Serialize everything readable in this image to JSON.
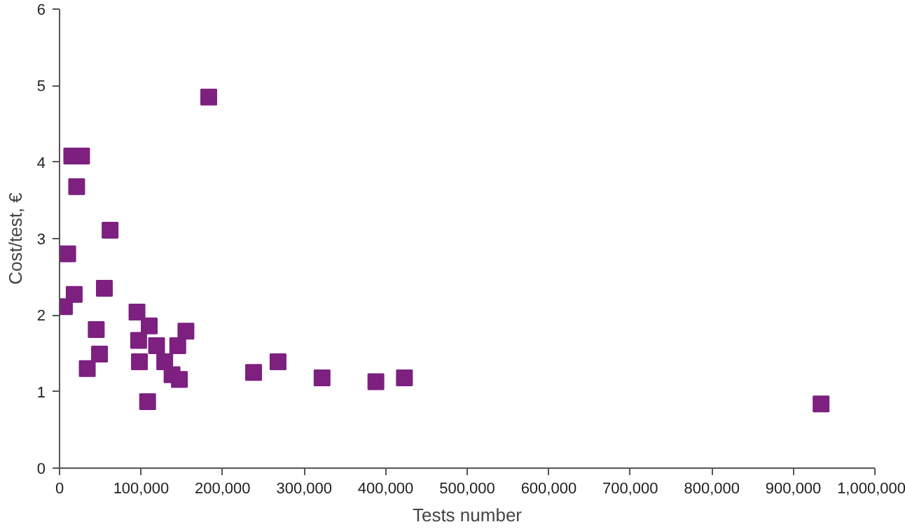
{
  "chart_data": {
    "type": "scatter",
    "xlabel": "Tests number",
    "ylabel": "Cost/test, €",
    "marker": "square",
    "grid": false,
    "xlim": [
      0,
      1000000
    ],
    "ylim": [
      0,
      6
    ],
    "xticks": [
      0,
      {
        "value": 100000,
        "label": "100,000"
      },
      {
        "value": 200000,
        "label": "200,000"
      },
      {
        "value": 300000,
        "label": "300,000"
      },
      {
        "value": 400000,
        "label": "400,000"
      },
      {
        "value": 500000,
        "label": "500,000"
      },
      {
        "value": 600000,
        "label": "600,000"
      },
      {
        "value": 700000,
        "label": "700,000"
      },
      {
        "value": 800000,
        "label": "800,000"
      },
      {
        "value": 900000,
        "label": "900,000"
      },
      {
        "value": 1000000,
        "label": "1,000,000"
      }
    ],
    "yticks": [
      0,
      1,
      2,
      3,
      4,
      5,
      6
    ],
    "series": [
      {
        "color": "#7d2080",
        "x": [
          183000,
          15000,
          27000,
          21000,
          62000,
          10000,
          55000,
          18000,
          6000,
          95000,
          110000,
          45000,
          155000,
          97000,
          119000,
          145000,
          49000,
          98000,
          129000,
          34000,
          138000,
          147000,
          108000,
          238000,
          268000,
          322000,
          388000,
          423000,
          934000
        ],
        "values": [
          4.85,
          4.08,
          4.08,
          3.68,
          3.11,
          2.8,
          2.35,
          2.27,
          2.11,
          2.04,
          1.86,
          1.81,
          1.79,
          1.67,
          1.6,
          1.6,
          1.49,
          1.39,
          1.39,
          1.3,
          1.22,
          1.16,
          0.87,
          1.25,
          1.39,
          1.18,
          1.13,
          1.18,
          0.84
        ]
      }
    ]
  }
}
